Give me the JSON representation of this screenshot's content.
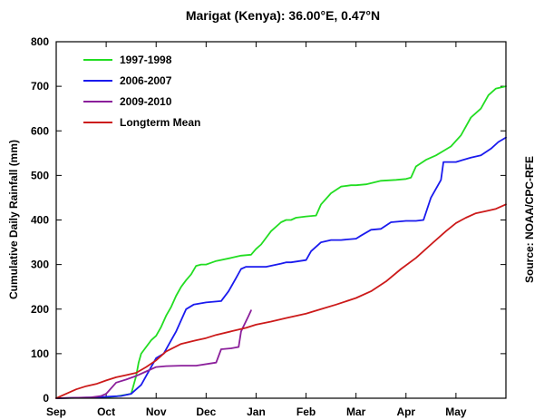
{
  "chart_data": {
    "type": "line",
    "title": "Marigat (Kenya):  36.00°E, 0.47°N",
    "ylabel": "Cumulative Daily Rainfall (mm)",
    "xlabel": "",
    "source": "Source: NOAA/CPC-RFE",
    "categories": [
      "Sep",
      "Oct",
      "Nov",
      "Dec",
      "Jan",
      "Feb",
      "Mar",
      "Apr",
      "May"
    ],
    "ylim": [
      0,
      800
    ],
    "yticks": [
      "0",
      "100",
      "200",
      "300",
      "400",
      "500",
      "600",
      "700",
      "800"
    ],
    "x_unit": "months since Sep 1 (0 = Sep 1, 9 = Jun 1)",
    "xlim": [
      0,
      9
    ],
    "grid": false,
    "legend_position": "top-left",
    "series": [
      {
        "name": "1997-1998",
        "color": "#22dd22",
        "x": [
          0,
          0.5,
          1.0,
          1.2,
          1.5,
          1.6,
          1.65,
          1.7,
          1.8,
          1.9,
          2.0,
          2.1,
          2.2,
          2.3,
          2.4,
          2.5,
          2.6,
          2.7,
          2.8,
          2.9,
          3.0,
          3.1,
          3.2,
          3.5,
          3.7,
          3.9,
          4.0,
          4.1,
          4.2,
          4.3,
          4.5,
          4.6,
          4.7,
          4.8,
          5.0,
          5.2,
          5.3,
          5.5,
          5.7,
          5.9,
          6.0,
          6.2,
          6.5,
          6.8,
          7.0,
          7.1,
          7.2,
          7.4,
          7.6,
          7.75,
          7.9,
          8.1,
          8.3,
          8.5,
          8.65,
          8.8,
          9.0
        ],
        "values": [
          0,
          1,
          2,
          4,
          10,
          50,
          80,
          100,
          115,
          130,
          140,
          160,
          185,
          205,
          230,
          250,
          265,
          278,
          297,
          300,
          300,
          304,
          308,
          315,
          320,
          322,
          335,
          345,
          360,
          375,
          395,
          400,
          400,
          405,
          408,
          410,
          435,
          460,
          475,
          478,
          478,
          480,
          488,
          490,
          492,
          495,
          520,
          535,
          545,
          555,
          565,
          590,
          630,
          650,
          680,
          695,
          700
        ]
      },
      {
        "name": "2006-2007",
        "color": "#1a1aee",
        "x": [
          0,
          0.8,
          1.3,
          1.5,
          1.7,
          1.9,
          2.0,
          2.15,
          2.3,
          2.4,
          2.5,
          2.6,
          2.75,
          3.0,
          3.3,
          3.45,
          3.6,
          3.7,
          3.8,
          4.0,
          4.2,
          4.5,
          4.6,
          4.7,
          5.0,
          5.1,
          5.3,
          5.5,
          5.7,
          6.0,
          6.1,
          6.3,
          6.5,
          6.7,
          7.0,
          7.2,
          7.35,
          7.5,
          7.7,
          7.75,
          8.0,
          8.3,
          8.5,
          8.7,
          8.85,
          9.0
        ],
        "values": [
          0,
          2,
          5,
          10,
          30,
          70,
          90,
          100,
          130,
          150,
          175,
          200,
          210,
          215,
          218,
          240,
          270,
          290,
          295,
          295,
          295,
          302,
          305,
          305,
          310,
          330,
          350,
          355,
          355,
          358,
          365,
          378,
          380,
          395,
          398,
          398,
          400,
          450,
          490,
          530,
          530,
          540,
          545,
          560,
          575,
          585
        ]
      },
      {
        "name": "2009-2010",
        "color": "#8b1f9b",
        "x": [
          0,
          0.7,
          0.9,
          1.0,
          1.2,
          1.4,
          1.6,
          1.8,
          2.0,
          2.2,
          2.5,
          2.8,
          3.2,
          3.3,
          3.5,
          3.65,
          3.7,
          3.85,
          3.9
        ],
        "values": [
          0,
          2,
          5,
          10,
          35,
          42,
          50,
          60,
          70,
          72,
          73,
          73,
          80,
          110,
          112,
          115,
          150,
          185,
          197
        ]
      },
      {
        "name": "Longterm Mean",
        "color": "#cc1a1a",
        "x": [
          0,
          0.2,
          0.4,
          0.6,
          0.8,
          1.0,
          1.2,
          1.4,
          1.6,
          1.8,
          2.0,
          2.2,
          2.5,
          2.8,
          3.0,
          3.2,
          3.5,
          3.8,
          4.0,
          4.3,
          4.6,
          5.0,
          5.3,
          5.6,
          6.0,
          6.3,
          6.6,
          6.9,
          7.2,
          7.5,
          7.8,
          8.0,
          8.2,
          8.4,
          8.6,
          8.8,
          9.0
        ],
        "values": [
          0,
          10,
          20,
          27,
          32,
          40,
          47,
          52,
          57,
          70,
          85,
          105,
          122,
          130,
          135,
          142,
          150,
          158,
          165,
          172,
          180,
          190,
          200,
          210,
          225,
          240,
          262,
          290,
          315,
          345,
          375,
          393,
          405,
          415,
          420,
          425,
          435
        ]
      }
    ]
  }
}
